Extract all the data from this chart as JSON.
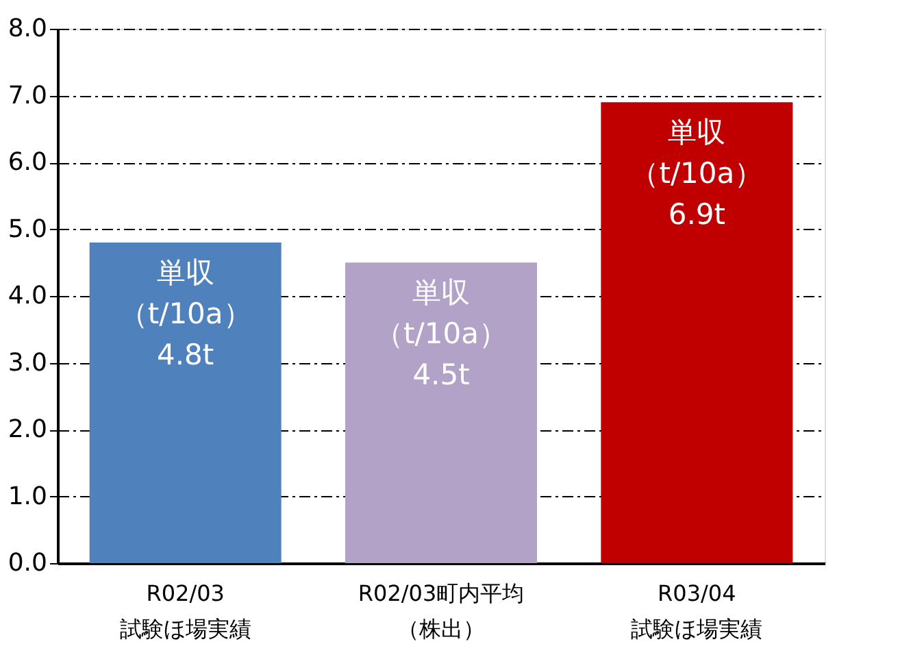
{
  "chart_data": {
    "type": "bar",
    "categories": [
      "R02/03 試験ほ場実績",
      "R02/03町内平均（株出）",
      "R03/04 試験ほ場実績"
    ],
    "values": [
      4.8,
      4.5,
      6.9
    ],
    "colors": [
      "#4f81bd",
      "#b3a2c7",
      "#c00000"
    ],
    "value_labels": [
      "単収（t/10a）4.8t",
      "単収（t/10a）4.5t",
      "単収（t/10a）6.9t"
    ],
    "ylim": [
      0,
      8
    ],
    "yticks": [
      {
        "value": 0,
        "label": "0.0"
      },
      {
        "value": 1,
        "label": "1.0"
      },
      {
        "value": 2,
        "label": "2.0"
      },
      {
        "value": 3,
        "label": "3.0"
      },
      {
        "value": 4,
        "label": "4.0"
      },
      {
        "value": 5,
        "label": "5.0"
      },
      {
        "value": 6,
        "label": "6.0"
      },
      {
        "value": 7,
        "label": "7.0"
      },
      {
        "value": 8,
        "label": "8.0"
      }
    ],
    "grid": "y"
  }
}
